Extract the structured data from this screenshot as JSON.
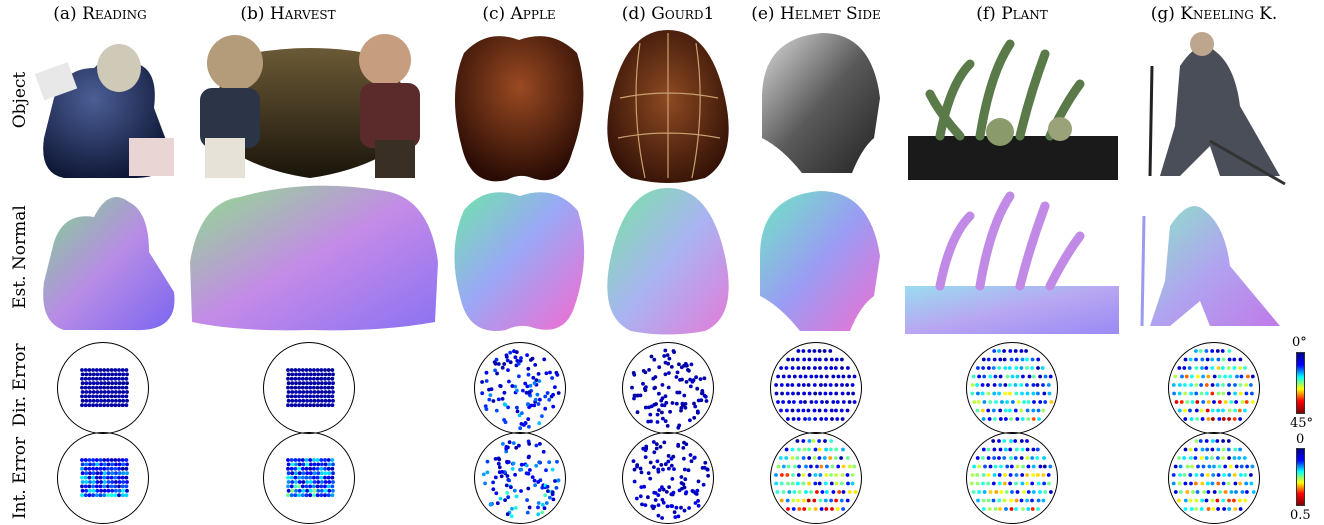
{
  "columns": [
    {
      "prefix": "(a) ",
      "name": "Reading"
    },
    {
      "prefix": "(b) ",
      "name": "Harvest"
    },
    {
      "prefix": "(c) ",
      "name": "Apple"
    },
    {
      "prefix": "(d) ",
      "name": "Gourd1"
    },
    {
      "prefix": "(e) ",
      "name": "Helmet Side"
    },
    {
      "prefix": "(f) ",
      "name": "Plant"
    },
    {
      "prefix": "(g) ",
      "name": "Kneeling K."
    }
  ],
  "rows": {
    "object": "Object",
    "normal": "Est. Normal",
    "dir_error": "Dir. Error",
    "int_error": "Int. Error"
  },
  "colorbars": {
    "dir": {
      "top": "0°",
      "bottom": "45°"
    },
    "int": {
      "top": "0",
      "bottom": "0.5"
    }
  },
  "colors": {
    "jet": [
      "#00008f",
      "#0000ff",
      "#00ffff",
      "#ffff00",
      "#ff0000",
      "#800000"
    ]
  }
}
